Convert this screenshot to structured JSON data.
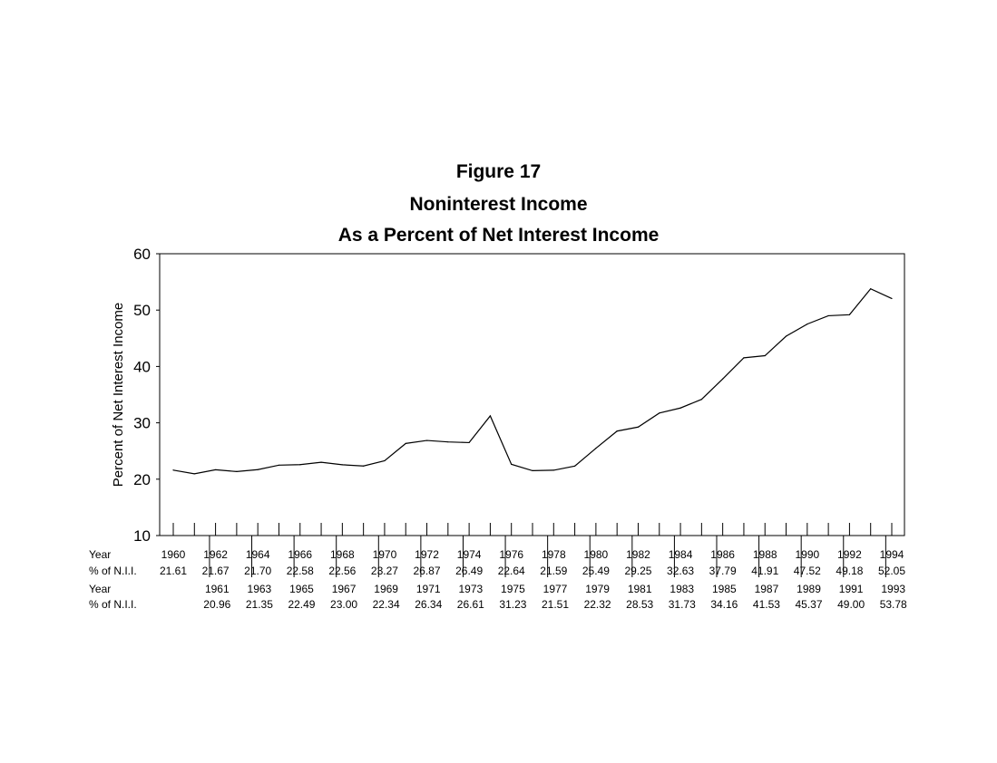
{
  "chart_data": {
    "type": "line",
    "title": "Figure 17",
    "subtitle_1": "Noninterest Income",
    "subtitle_2": "As a Percent of Net Interest Income",
    "ylabel": "Percent of Net Interest Income",
    "xlabel": "",
    "ylim": [
      10,
      60
    ],
    "yticks": [
      10,
      20,
      30,
      40,
      50,
      60
    ],
    "grid": false,
    "table_row_labels": {
      "year": "Year",
      "value": "% of N.I.I."
    },
    "x": [
      1960,
      1961,
      1962,
      1963,
      1964,
      1965,
      1966,
      1967,
      1968,
      1969,
      1970,
      1971,
      1972,
      1973,
      1974,
      1975,
      1976,
      1977,
      1978,
      1979,
      1980,
      1981,
      1982,
      1983,
      1984,
      1985,
      1986,
      1987,
      1988,
      1989,
      1990,
      1991,
      1992,
      1993,
      1994
    ],
    "values": [
      "21.61",
      "20.96",
      "21.67",
      "21.35",
      "21.70",
      "22.49",
      "22.58",
      "23.00",
      "22.56",
      "22.34",
      "23.27",
      "26.34",
      "26.87",
      "26.61",
      "26.49",
      "31.23",
      "22.64",
      "21.51",
      "21.59",
      "22.32",
      "25.49",
      "28.53",
      "29.25",
      "31.73",
      "32.63",
      "34.16",
      "37.79",
      "41.53",
      "41.91",
      "45.37",
      "47.52",
      "49.00",
      "49.18",
      "53.78",
      "52.05"
    ]
  }
}
